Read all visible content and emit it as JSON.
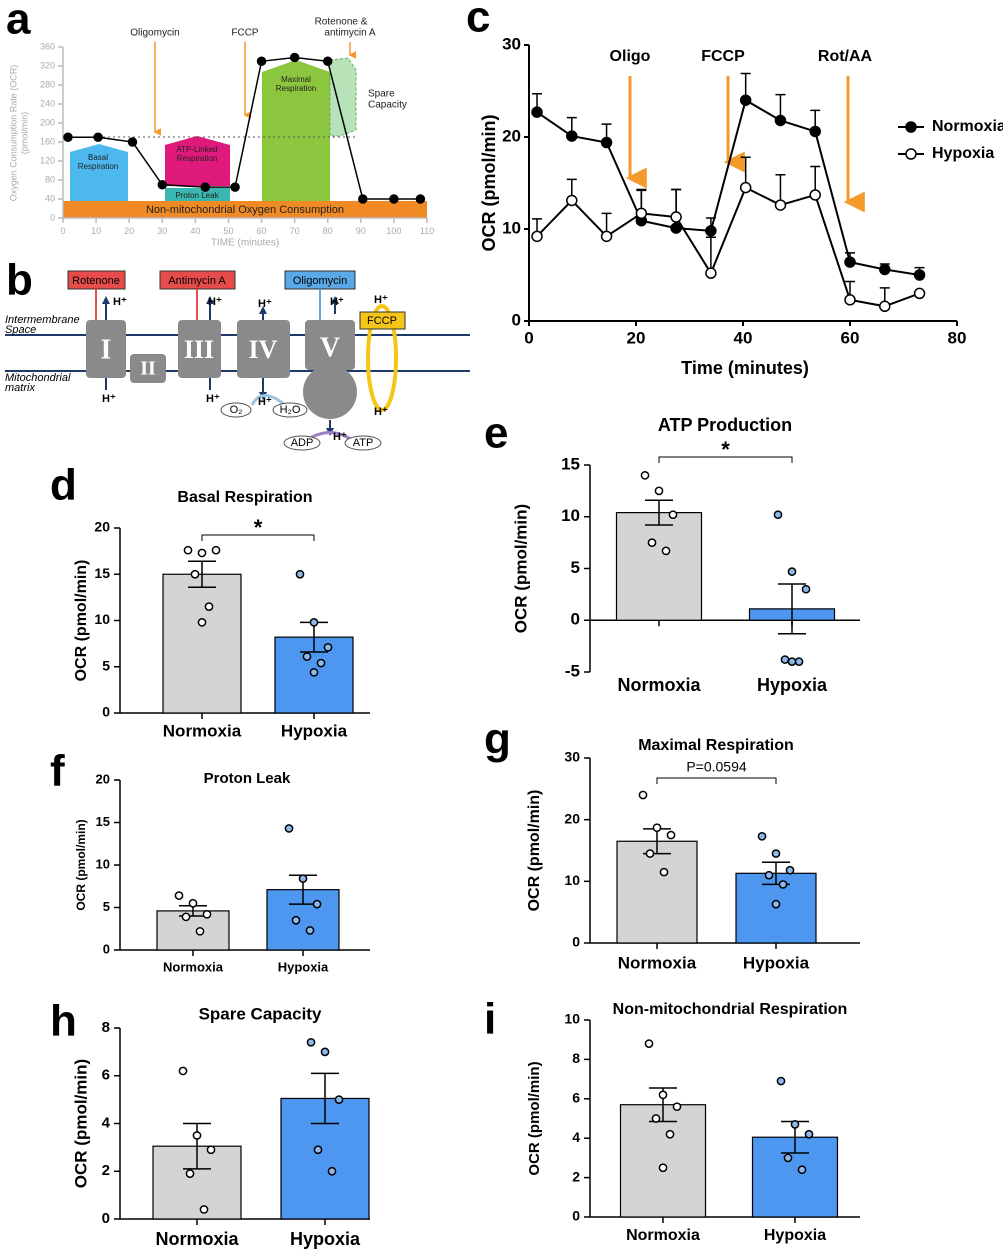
{
  "chart_data": [
    {
      "type": "line",
      "label": "a",
      "ylabel": [
        "Oxygen Consumption Rate (OCR)",
        "(pmol/min)"
      ],
      "xlabel": "TIME (minutes)",
      "x": [
        1.5,
        10.6,
        21,
        30,
        43,
        52,
        60,
        70,
        80,
        90.6,
        100,
        108
      ],
      "values": [
        170,
        170,
        160,
        70,
        65,
        65,
        330,
        338,
        330,
        40,
        40,
        40
      ],
      "color": "#000000",
      "xlim": [
        0,
        110
      ],
      "xticks": [
        0,
        10,
        20,
        30,
        40,
        50,
        60,
        70,
        80,
        90,
        100,
        110
      ],
      "ylim": [
        0,
        360
      ],
      "yticks": [
        0,
        40,
        80,
        120,
        160,
        200,
        240,
        280,
        320,
        360
      ],
      "annotations": [
        "Oligomycin",
        "FCCP",
        "Rotenone &",
        "antimycin A",
        "Basal",
        "Respiration",
        "ATP-Linked",
        "Respiration",
        "Proton Leak",
        "Maximal",
        "Respiration",
        "Spare",
        "Capacity",
        "Non-mitochondrial Oxygen Consumption"
      ]
    },
    {
      "type": "line",
      "label": "c",
      "ylabel": "OCR (pmol/min)",
      "xlabel": "Time (minutes)",
      "x": [
        1.5,
        8,
        14.5,
        21,
        27.5,
        34,
        40.5,
        47,
        53.5,
        60,
        66.5,
        73
      ],
      "series": [
        {
          "name": "Normoxia",
          "color": "#000000",
          "marker_fill": "#000000",
          "values": [
            22.7,
            20.1,
            19.4,
            10.9,
            10.1,
            9.8,
            24,
            21.8,
            20.6,
            6.4,
            5.6,
            5.0
          ],
          "errors": [
            2.0,
            2.0,
            2.0,
            3.4,
            4.2,
            1.4,
            2.9,
            2.8,
            2.3,
            1.0,
            0.6,
            0.8
          ]
        },
        {
          "name": "Hypoxia",
          "color": "#000000",
          "marker_fill": "#ffffff",
          "values": [
            9.2,
            13.1,
            9.2,
            11.7,
            11.3,
            5.2,
            14.5,
            12.6,
            13.7,
            2.3,
            1.6,
            3.0
          ],
          "errors": [
            1.9,
            2.3,
            2.5,
            2.5,
            3.0,
            3.9,
            3.3,
            3.3,
            3.1,
            2.0,
            2.0,
            0.0
          ]
        }
      ],
      "xlim": [
        0,
        80
      ],
      "xticks": [
        0,
        20,
        40,
        60,
        80
      ],
      "ylim": [
        0,
        30
      ],
      "yticks": [
        0,
        10,
        20,
        30
      ],
      "legend": "upper right",
      "annotations": [
        "Oligo",
        "FCCP",
        "Rot/AA"
      ]
    },
    {
      "type": "bar",
      "label": "d",
      "title": "Basal Respiration",
      "ylabel": "OCR (pmol/min)",
      "categories": [
        "Normoxia",
        "Hypoxia"
      ],
      "values": [
        15,
        8.2
      ],
      "errors": [
        1.4,
        1.6
      ],
      "points": [
        [
          17.6,
          17.3,
          17.6,
          15,
          11.5,
          9.8
        ],
        [
          15,
          9.8,
          7.1,
          6.1,
          5.4,
          4.4
        ]
      ],
      "colors": [
        "#d4d4d4",
        "#4d97f0"
      ],
      "point_colors": [
        "#ffffff",
        "#8db8ea"
      ],
      "ylim": [
        0,
        20
      ],
      "yticks": [
        0,
        5,
        10,
        15,
        20
      ],
      "significance": "*"
    },
    {
      "type": "bar",
      "label": "e",
      "title": "ATP Production",
      "ylabel": "OCR (pmol/min)",
      "categories": [
        "Normoxia",
        "Hypoxia"
      ],
      "values": [
        10.4,
        1.1
      ],
      "errors": [
        1.2,
        2.4
      ],
      "points": [
        [
          14,
          12.5,
          10.2,
          7.5,
          6.7
        ],
        [
          10.2,
          4.7,
          3,
          -3.8,
          -4,
          -4
        ]
      ],
      "colors": [
        "#d4d4d4",
        "#4d97f0"
      ],
      "point_colors": [
        "#ffffff",
        "#8db8ea"
      ],
      "ylim": [
        -5,
        15
      ],
      "yticks": [
        -5,
        0,
        5,
        10,
        15
      ],
      "significance": "*"
    },
    {
      "type": "bar",
      "label": "f",
      "title": "Proton Leak",
      "ylabel": "OCR (pmol/min)",
      "categories": [
        "Normoxia",
        "Hypoxia"
      ],
      "values": [
        4.6,
        7.1
      ],
      "errors": [
        0.6,
        1.7
      ],
      "points": [
        [
          6.4,
          5.5,
          4.2,
          3.9,
          2.2
        ],
        [
          14.3,
          8.4,
          5.4,
          3.5,
          2.3
        ]
      ],
      "colors": [
        "#d4d4d4",
        "#4d97f0"
      ],
      "point_colors": [
        "#ffffff",
        "#8db8ea"
      ],
      "ylim": [
        0,
        20
      ],
      "yticks": [
        0,
        5,
        10,
        15,
        20
      ]
    },
    {
      "type": "bar",
      "label": "g",
      "title": "Maximal Respiration",
      "ylabel": "OCR (pmol/min)",
      "categories": [
        "Normoxia",
        "Hypoxia"
      ],
      "values": [
        16.5,
        11.3
      ],
      "errors": [
        2.0,
        1.8
      ],
      "points": [
        [
          24,
          18.7,
          17.5,
          14.5,
          11.5
        ],
        [
          17.3,
          14.5,
          11.8,
          11,
          9.5,
          6.3
        ]
      ],
      "colors": [
        "#d4d4d4",
        "#4d97f0"
      ],
      "point_colors": [
        "#ffffff",
        "#8db8ea"
      ],
      "ylim": [
        0,
        30
      ],
      "yticks": [
        0,
        10,
        20,
        30
      ],
      "significance": "P=0.0594"
    },
    {
      "type": "bar",
      "label": "h",
      "title": "Spare Capacity",
      "ylabel": "OCR (pmol/min)",
      "categories": [
        "Normoxia",
        "Hypoxia"
      ],
      "values": [
        3.05,
        5.05
      ],
      "errors": [
        0.95,
        1.05
      ],
      "points": [
        [
          6.2,
          3.5,
          2.9,
          1.9,
          0.4
        ],
        [
          7.4,
          7.0,
          5.0,
          2.9,
          2.0
        ]
      ],
      "colors": [
        "#d4d4d4",
        "#4d97f0"
      ],
      "point_colors": [
        "#ffffff",
        "#8db8ea"
      ],
      "ylim": [
        0,
        8
      ],
      "yticks": [
        0,
        2,
        4,
        6,
        8
      ]
    },
    {
      "type": "bar",
      "label": "i",
      "title": "Non-mitochondrial Respiration",
      "ylabel": "OCR (pmol/min)",
      "categories": [
        "Normoxia",
        "Hypoxia"
      ],
      "values": [
        5.7,
        4.05
      ],
      "errors": [
        0.85,
        0.8
      ],
      "points": [
        [
          8.8,
          6.2,
          5.6,
          5.0,
          4.2,
          2.5
        ],
        [
          6.9,
          4.7,
          4.2,
          3.0,
          2.4
        ]
      ],
      "colors": [
        "#d4d4d4",
        "#4d97f0"
      ],
      "point_colors": [
        "#ffffff",
        "#8db8ea"
      ],
      "ylim": [
        0,
        10
      ],
      "yticks": [
        0,
        2,
        4,
        6,
        8,
        10
      ]
    }
  ],
  "diagram": {
    "label": "b",
    "inhibitors": [
      "Rotenone",
      "Antimycin A",
      "Oligomycin",
      "FCCP"
    ],
    "compartments": [
      "Intermembrane",
      "Space",
      "Mitochondrial",
      "matrix"
    ],
    "complexes": [
      "I",
      "II",
      "III",
      "IV",
      "V"
    ],
    "proton": "H⁺",
    "molecules": [
      "O₂",
      "H₂O",
      "ADP",
      "ATP"
    ]
  }
}
